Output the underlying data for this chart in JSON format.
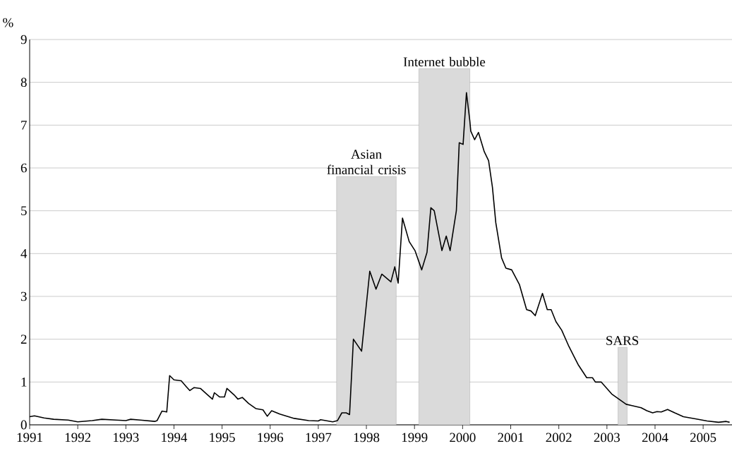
{
  "chart_data": {
    "type": "line",
    "ylabel": "%",
    "x": [
      1991.0,
      1991.1,
      1991.3,
      1991.5,
      1991.8,
      1992.0,
      1992.3,
      1992.5,
      1992.8,
      1993.0,
      1993.1,
      1993.3,
      1993.6,
      1993.65,
      1993.75,
      1993.85,
      1993.91,
      1994.0,
      1994.15,
      1994.25,
      1994.33,
      1994.42,
      1994.55,
      1994.7,
      1994.8,
      1994.84,
      1994.95,
      1995.05,
      1995.1,
      1995.25,
      1995.33,
      1995.42,
      1995.55,
      1995.7,
      1995.85,
      1995.94,
      1996.03,
      1996.2,
      1996.5,
      1996.8,
      1997.0,
      1997.05,
      1997.3,
      1997.4,
      1997.49,
      1997.58,
      1997.65,
      1997.73,
      1997.9,
      1998.07,
      1998.2,
      1998.32,
      1998.51,
      1998.59,
      1998.66,
      1998.75,
      1998.89,
      1999.01,
      1999.15,
      1999.26,
      1999.34,
      1999.41,
      1999.57,
      1999.66,
      1999.74,
      1999.87,
      1999.93,
      2000.01,
      2000.08,
      2000.15,
      2000.17,
      2000.25,
      2000.33,
      2000.45,
      2000.54,
      2000.62,
      2000.69,
      2000.81,
      2000.9,
      2001.02,
      2001.18,
      2001.33,
      2001.42,
      2001.51,
      2001.66,
      2001.76,
      2001.84,
      2001.94,
      2002.06,
      2002.21,
      2002.4,
      2002.58,
      2002.7,
      2002.76,
      2002.88,
      2003.1,
      2003.25,
      2003.4,
      2003.52,
      2003.71,
      2003.83,
      2003.95,
      2004.04,
      2004.13,
      2004.26,
      2004.41,
      2004.59,
      2004.84,
      2005.08,
      2005.32,
      2005.48,
      2005.55
    ],
    "series": [
      {
        "color": "#000000",
        "values": [
          0.19,
          0.21,
          0.16,
          0.13,
          0.11,
          0.07,
          0.1,
          0.13,
          0.11,
          0.1,
          0.13,
          0.11,
          0.08,
          0.1,
          0.32,
          0.3,
          1.15,
          1.05,
          1.03,
          0.9,
          0.8,
          0.87,
          0.85,
          0.7,
          0.6,
          0.75,
          0.65,
          0.65,
          0.85,
          0.7,
          0.6,
          0.64,
          0.5,
          0.38,
          0.35,
          0.2,
          0.33,
          0.25,
          0.15,
          0.1,
          0.09,
          0.12,
          0.07,
          0.1,
          0.28,
          0.28,
          0.24,
          2.0,
          1.72,
          3.59,
          3.17,
          3.52,
          3.34,
          3.69,
          3.31,
          4.83,
          4.28,
          4.07,
          3.62,
          4.03,
          5.07,
          5.0,
          4.07,
          4.41,
          4.07,
          5.0,
          6.59,
          6.55,
          7.76,
          7.1,
          6.86,
          6.66,
          6.83,
          6.38,
          6.17,
          5.55,
          4.72,
          3.9,
          3.66,
          3.62,
          3.28,
          2.69,
          2.66,
          2.55,
          3.07,
          2.69,
          2.69,
          2.41,
          2.21,
          1.83,
          1.41,
          1.1,
          1.1,
          1.0,
          1.0,
          0.72,
          0.6,
          0.48,
          0.45,
          0.4,
          0.33,
          0.28,
          0.31,
          0.3,
          0.36,
          0.28,
          0.19,
          0.14,
          0.09,
          0.06,
          0.08,
          0.06
        ]
      }
    ],
    "xlim": [
      1991,
      2005.6
    ],
    "xticks": [
      1991,
      1992,
      1993,
      1994,
      1995,
      1996,
      1997,
      1998,
      1999,
      2000,
      2001,
      2002,
      2003,
      2004,
      2005
    ],
    "ylim": [
      0,
      9
    ],
    "yticks": [
      0,
      1,
      2,
      3,
      4,
      5,
      6,
      7,
      8,
      9
    ],
    "grid": "y",
    "line_style": "solid",
    "bands": [
      {
        "axis": "x",
        "from": 1997.38,
        "to": 1998.62,
        "color": "#dadada"
      },
      {
        "axis": "x",
        "from": 1999.09,
        "to": 2000.15,
        "color": "#dadada"
      },
      {
        "axis": "x",
        "from": 2003.23,
        "to": 2003.42,
        "color": "#dadada"
      }
    ],
    "annotations": [
      {
        "text": "Asian financial crisis",
        "x": 1998.0,
        "y": 5.8
      },
      {
        "text": "Internet bubble",
        "x": 1999.62,
        "y": 8.32
      },
      {
        "text": "SARS",
        "x": 2003.32,
        "y": 1.81
      }
    ]
  }
}
